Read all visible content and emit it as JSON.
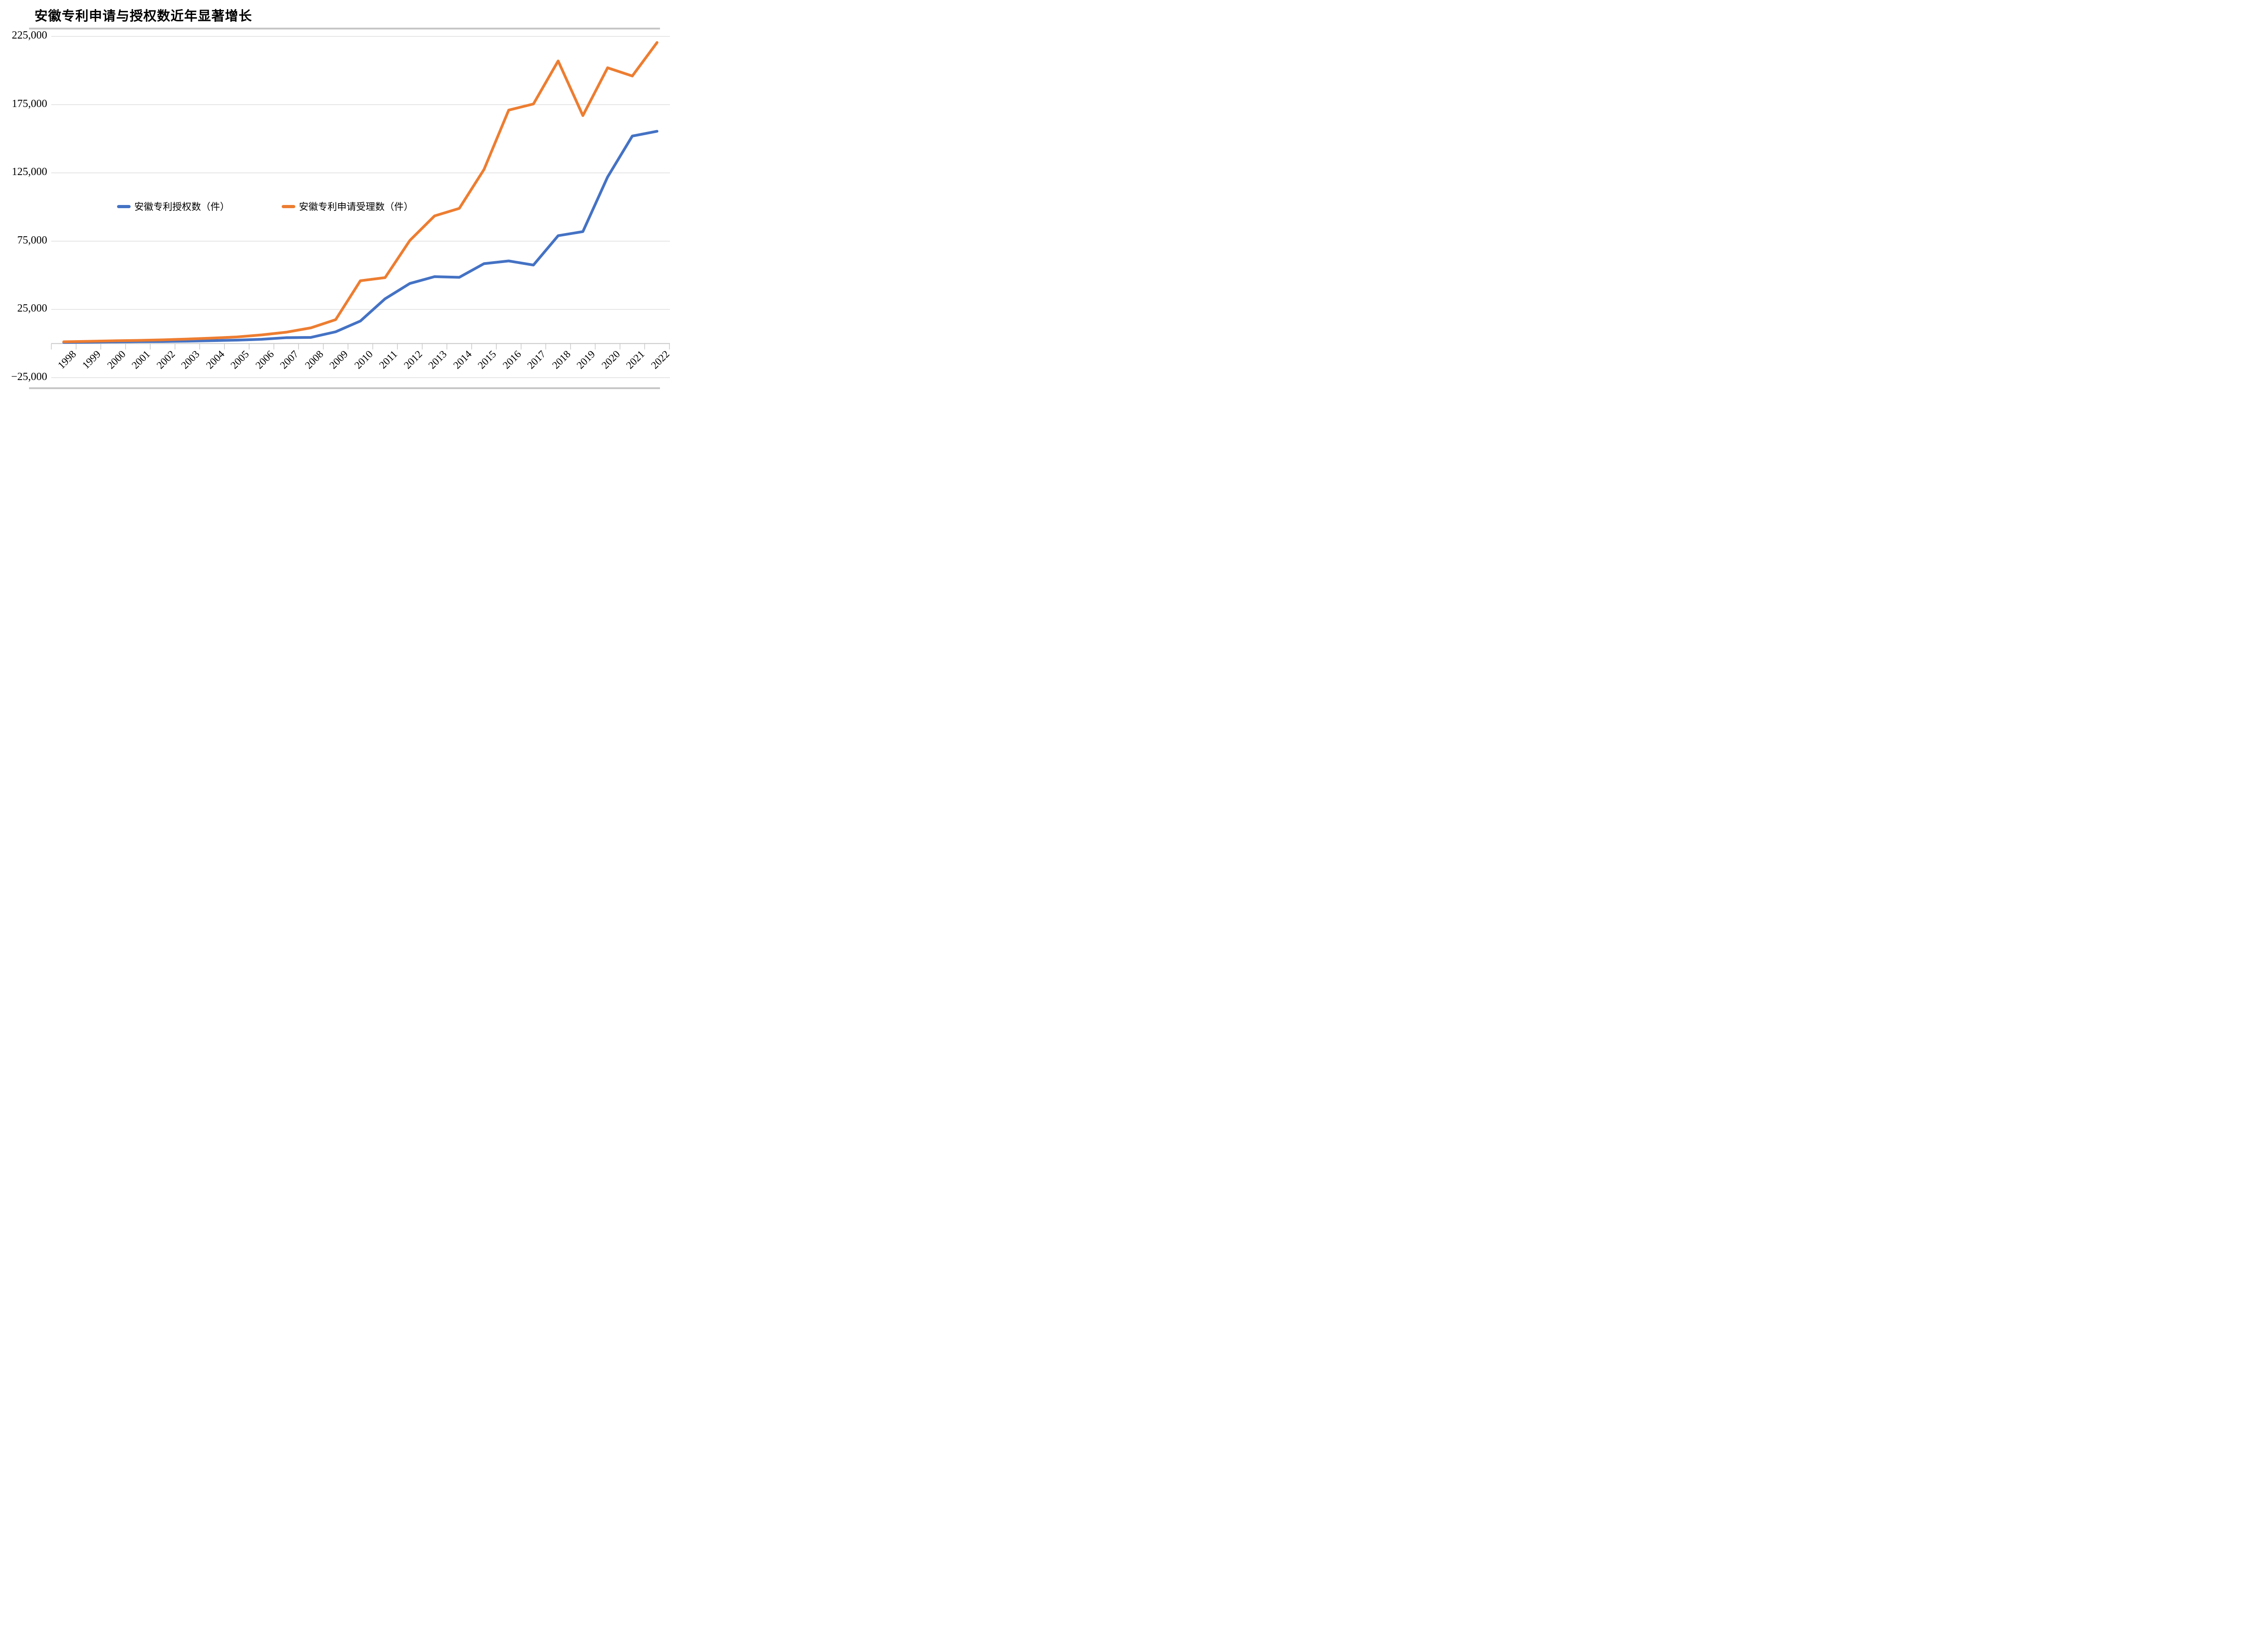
{
  "title": "安徽专利申请与授权数近年显著增长",
  "colors": {
    "grant_line": "#4472C4",
    "application_line": "#ED7D31",
    "gridline": "#D9D9D9",
    "axis_line": "#C9C9C9",
    "divider_rule": "#C6C6C6",
    "text": "#000000",
    "background": "#FFFFFF"
  },
  "legend": {
    "items": [
      {
        "label": "安徽专利授权数（件）",
        "series": "grants"
      },
      {
        "label": "安徽专利申请受理数（件）",
        "series": "applications"
      }
    ]
  },
  "y_axis": {
    "tick_values": [
      225000,
      175000,
      125000,
      75000,
      25000,
      -25000
    ],
    "tick_labels": [
      "225,000",
      "175,000",
      "125,000",
      "75,000",
      "25,000",
      "−25,000"
    ]
  },
  "chart_data": {
    "type": "line",
    "title": "安徽专利申请与授权数近年显著增长",
    "x": [
      "1998",
      "1999",
      "2000",
      "2001",
      "2002",
      "2003",
      "2004",
      "2005",
      "2006",
      "2007",
      "2008",
      "2009",
      "2010",
      "2011",
      "2012",
      "2013",
      "2014",
      "2015",
      "2016",
      "2017",
      "2018",
      "2019",
      "2020",
      "2021",
      "2022"
    ],
    "series": [
      {
        "name": "安徽专利授权数（件）",
        "color": "#4472C4",
        "values": [
          800,
          950,
          1200,
          1400,
          1500,
          1750,
          2100,
          2500,
          3100,
          4300,
          4500,
          8600,
          16500,
          32800,
          44000,
          49000,
          48500,
          58500,
          60500,
          57500,
          79000,
          82000,
          122000,
          152000,
          155500
        ]
      },
      {
        "name": "安徽专利申请受理数（件）",
        "color": "#ED7D31",
        "values": [
          1300,
          1600,
          2000,
          2300,
          2700,
          3300,
          4000,
          4800,
          6300,
          8300,
          11500,
          17500,
          46000,
          48300,
          75500,
          93500,
          99000,
          127500,
          171000,
          175500,
          207000,
          167000,
          202000,
          196000,
          220500
        ]
      }
    ],
    "xlabel": "",
    "ylabel": "",
    "ylim": [
      -25000,
      225000
    ],
    "ytick_interval": 50000,
    "grid": "horizontal",
    "legend_position": "inside-center-left"
  }
}
